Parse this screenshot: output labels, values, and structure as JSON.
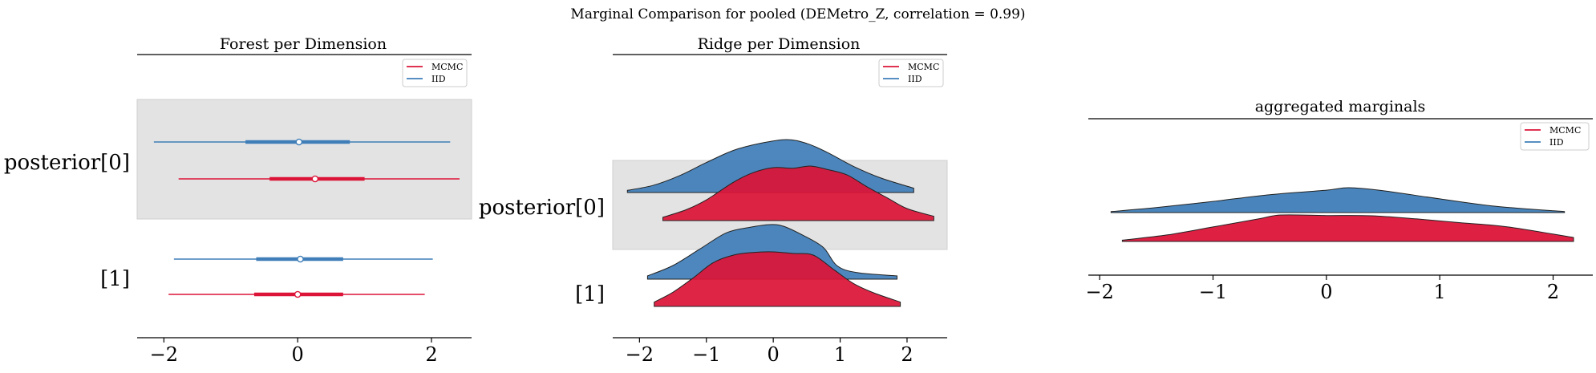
{
  "suptitle": "Marginal Comparison for pooled (DEMetro_Z, correlation = 0.99)",
  "colors": {
    "mcmc": "#dc1438",
    "iid": "#3f7eb8",
    "band": "#e3e3e3",
    "outline": "#222222"
  },
  "legend": {
    "entries": [
      "MCMC",
      "IID"
    ],
    "placement": "upper right"
  },
  "chart_data": [
    {
      "type": "forest",
      "title": "Forest per Dimension",
      "xlim": [
        -2.4,
        2.6
      ],
      "xticks": [
        -2,
        0,
        2
      ],
      "xtick_labels": [
        "−2",
        "0",
        "2"
      ],
      "rows": [
        {
          "label": "posterior[0]",
          "shaded": true,
          "series": [
            {
              "name": "IID",
              "lo": -2.15,
              "q25": -0.78,
              "median": 0.02,
              "q75": 0.78,
              "hi": 2.28
            },
            {
              "name": "MCMC",
              "lo": -1.78,
              "q25": -0.42,
              "median": 0.26,
              "q75": 1.0,
              "hi": 2.42
            }
          ]
        },
        {
          "label": "[1]",
          "shaded": false,
          "series": [
            {
              "name": "IID",
              "lo": -1.85,
              "q25": -0.62,
              "median": 0.04,
              "q75": 0.68,
              "hi": 2.02
            },
            {
              "name": "MCMC",
              "lo": -1.93,
              "q25": -0.65,
              "median": 0.0,
              "q75": 0.68,
              "hi": 1.9
            }
          ]
        }
      ]
    },
    {
      "type": "ridge",
      "title": "Ridge per Dimension",
      "xlim": [
        -2.4,
        2.6
      ],
      "xticks": [
        -2,
        -1,
        0,
        1,
        2
      ],
      "xtick_labels": [
        "−2",
        "−1",
        "0",
        "1",
        "2"
      ],
      "rows": [
        {
          "label": "posterior[0]",
          "shaded": true,
          "ridges": [
            {
              "name": "IID",
              "x": [
                -2.18,
                -1.8,
                -1.4,
                -1.0,
                -0.6,
                -0.2,
                0.2,
                0.5,
                0.8,
                1.2,
                1.6,
                2.1
              ],
              "density": [
                0.04,
                0.13,
                0.31,
                0.55,
                0.77,
                0.9,
                0.97,
                0.9,
                0.74,
                0.48,
                0.27,
                0.08
              ]
            },
            {
              "name": "MCMC",
              "x": [
                -1.65,
                -1.3,
                -1.0,
                -0.6,
                -0.3,
                0.0,
                0.3,
                0.55,
                0.8,
                1.1,
                1.4,
                1.7,
                2.0,
                2.4
              ],
              "density": [
                0.06,
                0.2,
                0.38,
                0.7,
                0.88,
                0.97,
                0.96,
                1.0,
                0.94,
                0.84,
                0.62,
                0.42,
                0.22,
                0.08
              ]
            }
          ]
        },
        {
          "label": "[1]",
          "shaded": false,
          "ridges": [
            {
              "name": "IID",
              "x": [
                -1.88,
                -1.5,
                -1.1,
                -0.7,
                -0.35,
                -0.05,
                0.15,
                0.45,
                0.75,
                0.95,
                1.25,
                1.85
              ],
              "density": [
                0.06,
                0.25,
                0.55,
                0.85,
                0.95,
                1.0,
                0.97,
                0.8,
                0.58,
                0.25,
                0.12,
                0.06
              ]
            },
            {
              "name": "MCMC",
              "x": [
                -1.78,
                -1.5,
                -1.2,
                -0.9,
                -0.6,
                -0.3,
                0.0,
                0.3,
                0.6,
                0.9,
                1.2,
                1.5,
                1.9
              ],
              "density": [
                0.08,
                0.26,
                0.52,
                0.8,
                0.94,
                0.99,
                1.0,
                0.97,
                0.94,
                0.68,
                0.42,
                0.25,
                0.08
              ]
            }
          ]
        }
      ]
    },
    {
      "type": "ridge",
      "title": "aggregated marginals",
      "xlim": [
        -2.1,
        2.35
      ],
      "xticks": [
        -2,
        -1,
        0,
        1,
        2
      ],
      "xtick_labels": [
        "−2",
        "−1",
        "0",
        "1",
        "2"
      ],
      "ridges": [
        {
          "name": "IID",
          "x": [
            -1.9,
            -1.5,
            -1.0,
            -0.5,
            0.0,
            0.2,
            0.5,
            1.0,
            1.5,
            2.1
          ],
          "density": [
            0.04,
            0.2,
            0.45,
            0.72,
            0.9,
            1.0,
            0.88,
            0.55,
            0.25,
            0.04
          ]
        },
        {
          "name": "MCMC",
          "x": [
            -1.8,
            -1.4,
            -1.0,
            -0.6,
            -0.4,
            0.0,
            0.4,
            0.8,
            1.2,
            1.6,
            2.18
          ],
          "density": [
            0.05,
            0.25,
            0.55,
            0.85,
            1.0,
            0.98,
            0.97,
            0.85,
            0.7,
            0.55,
            0.15
          ]
        }
      ]
    }
  ]
}
